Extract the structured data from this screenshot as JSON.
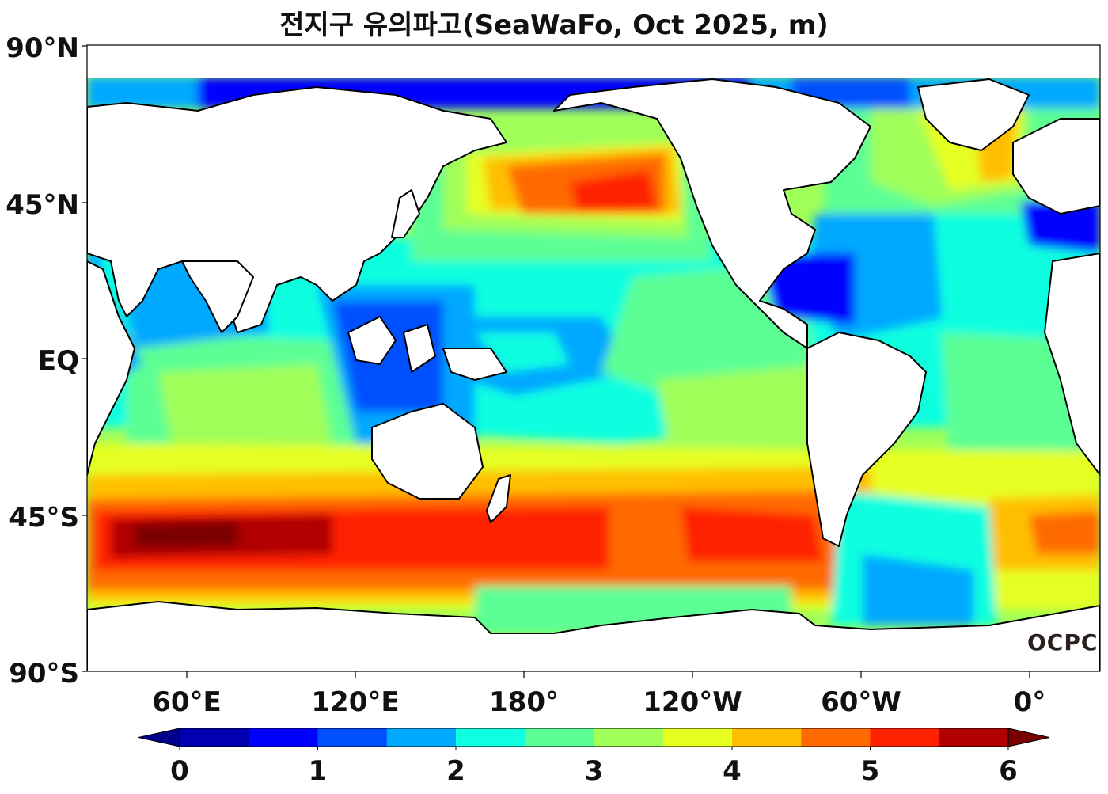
{
  "title": "전지구 유의파고(SeaWaFo, Oct 2025, m)",
  "brand": "OCPC",
  "lat_labels": [
    "90°N",
    "45°N",
    "EQ",
    "45°S",
    "90°S"
  ],
  "lon_labels": [
    "60°E",
    "120°E",
    "180°",
    "120°W",
    "60°W",
    "0°"
  ],
  "colorbar": {
    "ticks": [
      "0",
      "1",
      "2",
      "3",
      "4",
      "5",
      "6"
    ],
    "min": 0,
    "max": 6,
    "step": 0.5,
    "colors": [
      "#0000b0",
      "#0000ff",
      "#0050ff",
      "#00a8ff",
      "#10ffe0",
      "#5cff94",
      "#a0ff58",
      "#e6ff20",
      "#ffbf00",
      "#ff6a00",
      "#ff2200",
      "#b00000"
    ],
    "under_color": "#00008a",
    "over_color": "#7a0000"
  },
  "colors": {
    "land": "#ffffff",
    "coast": "#000000"
  }
}
